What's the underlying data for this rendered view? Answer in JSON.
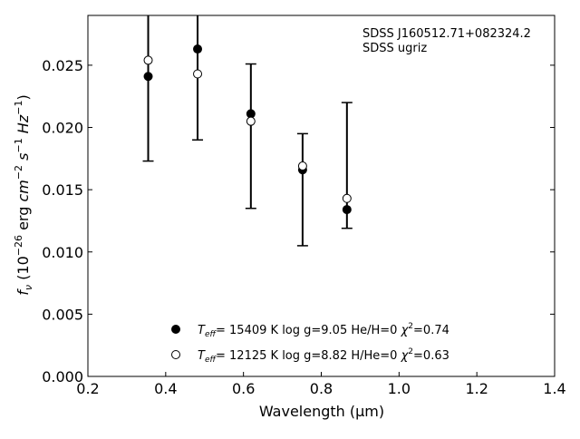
{
  "chart_data": {
    "type": "scatter",
    "annotation_lines": [
      "SDSS J160512.71+082324.2",
      "SDSS ugriz"
    ],
    "xlabel": "Wavelength (μm)",
    "ylabel": "f_ν (10^-26 erg cm^-2 s^-1 Hz^-1)",
    "xlim": [
      0.2,
      1.4
    ],
    "ylim": [
      0.0,
      0.029
    ],
    "x_ticks": [
      0.2,
      0.4,
      0.6,
      0.8,
      1.0,
      1.2,
      1.4
    ],
    "x_tick_labels": [
      "0.2",
      "0.4",
      "0.6",
      "0.8",
      "1.0",
      "1.2",
      "1.4"
    ],
    "y_ticks": [
      0.0,
      0.005,
      0.01,
      0.015,
      0.02,
      0.025
    ],
    "y_tick_labels": [
      "0.000",
      "0.005",
      "0.010",
      "0.015",
      "0.020",
      "0.025"
    ],
    "grid": false,
    "legend_position": "lower-center",
    "observed": {
      "x": [
        0.355,
        0.482,
        0.619,
        0.752,
        0.866
      ],
      "y": [
        0.0241,
        0.0263,
        0.0211,
        0.0166,
        0.0134
      ],
      "err_low": [
        0.0173,
        0.019,
        0.0135,
        0.0105,
        0.0119
      ],
      "err_high": [
        0.029,
        0.029,
        0.0251,
        0.0195,
        0.022
      ]
    },
    "series": [
      {
        "marker": "filled-circle",
        "color": "#000000",
        "fill": "#000000",
        "x": [
          0.355,
          0.482,
          0.619,
          0.752,
          0.866
        ],
        "y": [
          0.0241,
          0.0263,
          0.0211,
          0.0166,
          0.0134
        ]
      },
      {
        "marker": "open-circle",
        "color": "#000000",
        "fill": "#ffffff",
        "x": [
          0.355,
          0.482,
          0.619,
          0.752,
          0.866
        ],
        "y": [
          0.0254,
          0.0243,
          0.0205,
          0.0169,
          0.0143
        ]
      }
    ],
    "legend": [
      {
        "teff_value": "= 15409 K",
        "rest": "log g=9.05  He/H=0",
        "chi_value": "=0.74"
      },
      {
        "teff_value": "= 12125 K",
        "rest": "log g=8.82  H/He=0",
        "chi_value": "=0.63"
      }
    ]
  }
}
